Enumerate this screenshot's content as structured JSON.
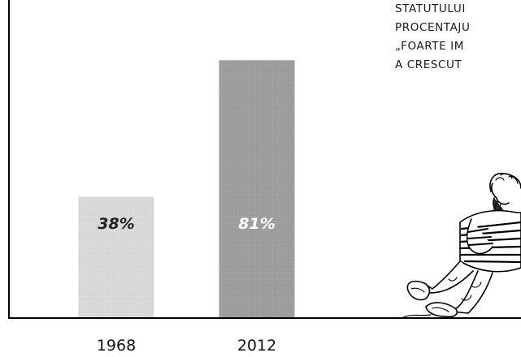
{
  "caption_lines": [
    "STATUTULUI",
    "PROCENTAJU",
    "„FOARTE IM",
    "A CRESCUT"
  ],
  "colors": {
    "bar_1968": "#d8d8d8",
    "bar_2012": "#9a9a9a",
    "label_1968": "#222222",
    "label_2012": "#ffffff",
    "axis": "#000000"
  },
  "figure_icon": "leaning-man-illustration",
  "chart_data": {
    "type": "bar",
    "categories": [
      "1968",
      "2012"
    ],
    "values": [
      38,
      81
    ],
    "data_labels": [
      "38%",
      "81%"
    ],
    "title": "",
    "xlabel": "",
    "ylabel": "",
    "ylim": [
      0,
      100
    ],
    "grid": false,
    "legend": "none"
  }
}
